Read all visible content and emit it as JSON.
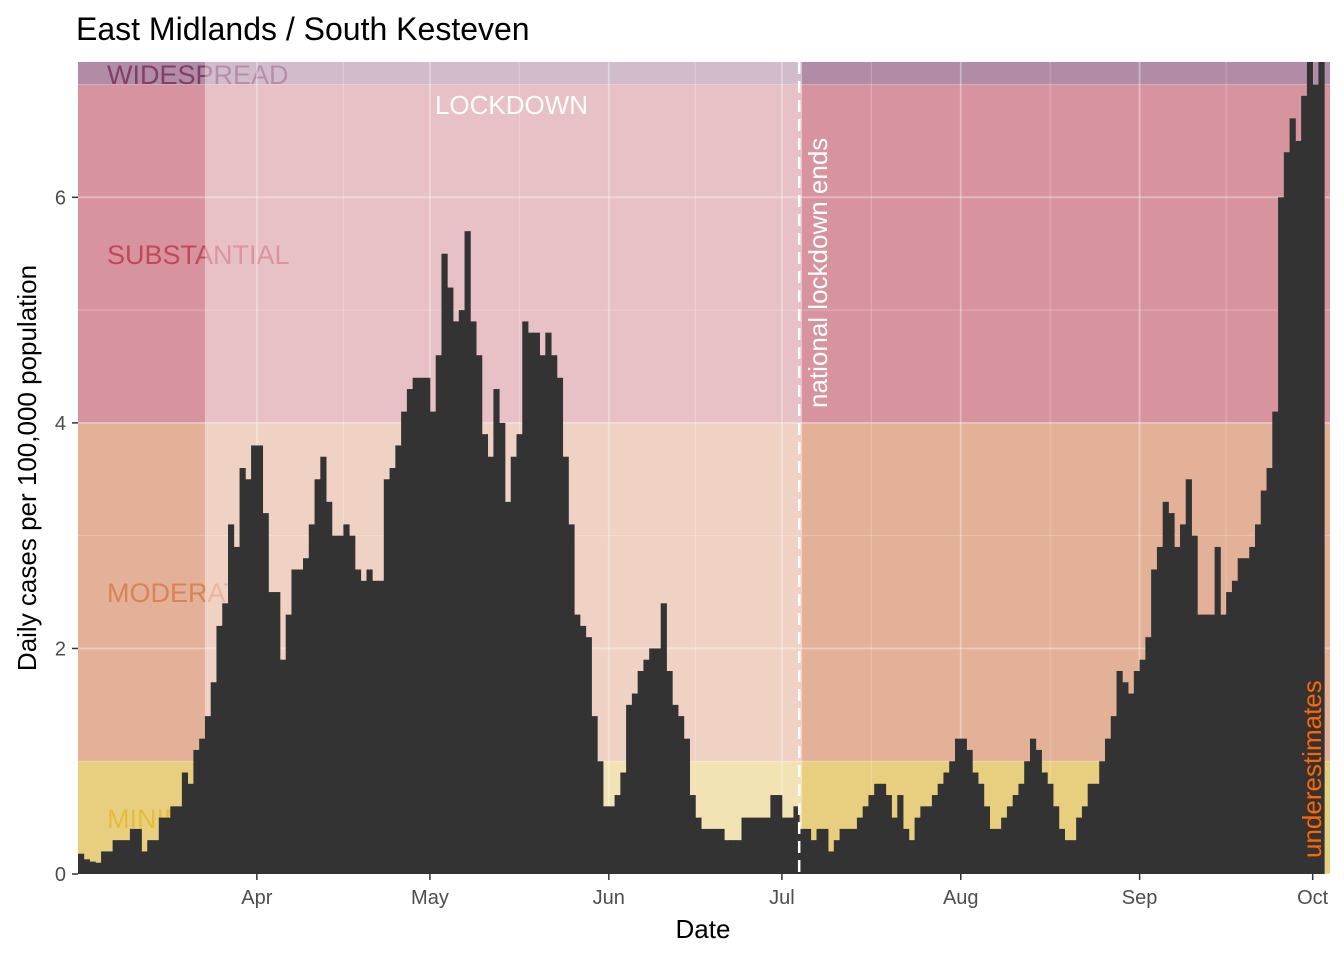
{
  "chart_data": {
    "type": "bar",
    "title": "East Midlands / South Kesteven",
    "xlabel": "Date",
    "ylabel": "Daily cases per 100,000 population",
    "x_start": "2020-03-01",
    "x_end": "2020-10-03",
    "x_ticks": [
      {
        "label": "Apr",
        "date": "2020-04-01"
      },
      {
        "label": "May",
        "date": "2020-05-01"
      },
      {
        "label": "Jun",
        "date": "2020-06-01"
      },
      {
        "label": "Jul",
        "date": "2020-07-01"
      },
      {
        "label": "Aug",
        "date": "2020-08-01"
      },
      {
        "label": "Sep",
        "date": "2020-09-01"
      },
      {
        "label": "Oct",
        "date": "2020-10-01"
      }
    ],
    "ylim": [
      0,
      7.2
    ],
    "y_ticks": [
      0,
      2,
      4,
      6
    ],
    "grid": true,
    "bands": [
      {
        "label": "MINIMAL",
        "from": 0,
        "to": 1,
        "color": "#e8cf7f",
        "label_color": "#e8b82c"
      },
      {
        "label": "MODERATE",
        "from": 1,
        "to": 4,
        "color": "#e3b198",
        "label_color": "#d87a4a"
      },
      {
        "label": "SUBSTANTIAL",
        "from": 4,
        "to": 7,
        "color": "#d8949e",
        "label_color": "#c0394f"
      },
      {
        "label": "WIDESPREAD",
        "from": 7,
        "to": 7.2,
        "color": "#b08ca6",
        "label_color": "#7b2f5f"
      }
    ],
    "lockdown": {
      "label": "LOCKDOWN",
      "start": "2020-03-23",
      "end": "2020-07-04"
    },
    "annotations": [
      {
        "text": "national lockdown ends",
        "date": "2020-07-04",
        "color": "#ffffff"
      },
      {
        "text": "underestimates",
        "color": "#ff6600"
      }
    ],
    "series": [
      {
        "color": "#333333",
        "values": [
          0.18,
          0.13,
          0.11,
          0.1,
          0.2,
          0.2,
          0.3,
          0.3,
          0.3,
          0.4,
          0.4,
          0.2,
          0.3,
          0.3,
          0.5,
          0.5,
          0.6,
          0.6,
          0.9,
          0.8,
          1.1,
          1.2,
          1.4,
          1.7,
          2.2,
          2.4,
          3.1,
          2.9,
          3.6,
          3.5,
          3.8,
          3.8,
          3.2,
          2.5,
          2.5,
          1.9,
          2.3,
          2.7,
          2.7,
          2.8,
          3.1,
          3.5,
          3.7,
          3.3,
          3.0,
          3.0,
          3.1,
          3.0,
          2.7,
          2.6,
          2.7,
          2.6,
          2.6,
          3.5,
          3.6,
          3.8,
          4.1,
          4.3,
          4.4,
          4.4,
          4.4,
          4.1,
          4.6,
          5.5,
          5.2,
          4.9,
          5.0,
          5.7,
          4.9,
          4.6,
          3.9,
          3.7,
          4.3,
          4.0,
          3.3,
          3.7,
          3.9,
          4.9,
          4.8,
          4.8,
          4.6,
          4.8,
          4.6,
          4.4,
          3.7,
          3.1,
          2.3,
          2.2,
          2.1,
          1.4,
          1.0,
          0.6,
          0.6,
          0.7,
          0.9,
          1.5,
          1.6,
          1.8,
          1.9,
          2.0,
          2.0,
          2.4,
          1.8,
          1.5,
          1.4,
          1.2,
          0.7,
          0.5,
          0.4,
          0.4,
          0.4,
          0.4,
          0.3,
          0.3,
          0.3,
          0.5,
          0.5,
          0.5,
          0.5,
          0.5,
          0.7,
          0.7,
          0.5,
          0.5,
          0.6,
          0.4,
          0.4,
          0.3,
          0.4,
          0.4,
          0.2,
          0.3,
          0.4,
          0.4,
          0.4,
          0.5,
          0.6,
          0.7,
          0.8,
          0.8,
          0.7,
          0.5,
          0.7,
          0.4,
          0.3,
          0.5,
          0.6,
          0.6,
          0.7,
          0.8,
          0.9,
          1.0,
          1.2,
          1.2,
          1.1,
          0.9,
          0.8,
          0.6,
          0.4,
          0.4,
          0.5,
          0.6,
          0.7,
          0.8,
          1.0,
          1.2,
          1.1,
          0.9,
          0.8,
          0.6,
          0.4,
          0.3,
          0.3,
          0.5,
          0.6,
          0.8,
          0.8,
          1.0,
          1.2,
          1.4,
          1.8,
          1.7,
          1.6,
          1.8,
          1.9,
          2.1,
          2.7,
          2.9,
          3.3,
          3.2,
          2.9,
          3.1,
          3.5,
          3.0,
          2.3,
          2.3,
          2.3,
          2.9,
          2.3,
          2.5,
          2.6,
          2.8,
          2.8,
          2.9,
          3.1,
          3.4,
          3.6,
          4.1,
          6.0,
          6.4,
          6.7,
          6.5,
          6.9,
          7.2,
          7.0,
          7.2
        ]
      }
    ]
  }
}
